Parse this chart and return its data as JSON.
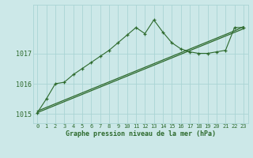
{
  "title": "Graphe pression niveau de la mer (hPa)",
  "background_color": "#cce8e8",
  "grid_color": "#aad4d4",
  "line_color": "#2d6a2d",
  "xlim": [
    -0.5,
    23.5
  ],
  "ylim": [
    1014.7,
    1018.6
  ],
  "yticks": [
    1015,
    1016,
    1017
  ],
  "xticks": [
    0,
    1,
    2,
    3,
    4,
    5,
    6,
    7,
    8,
    9,
    10,
    11,
    12,
    13,
    14,
    15,
    16,
    17,
    18,
    19,
    20,
    21,
    22,
    23
  ],
  "trend1_y": [
    1015.05,
    1015.17,
    1015.29,
    1015.41,
    1015.53,
    1015.65,
    1015.77,
    1015.89,
    1016.01,
    1016.13,
    1016.25,
    1016.37,
    1016.49,
    1016.61,
    1016.73,
    1016.85,
    1016.97,
    1017.09,
    1017.21,
    1017.33,
    1017.45,
    1017.57,
    1017.69,
    1017.81
  ],
  "trend2_y": [
    1015.1,
    1015.22,
    1015.34,
    1015.46,
    1015.58,
    1015.7,
    1015.82,
    1015.94,
    1016.06,
    1016.18,
    1016.3,
    1016.42,
    1016.54,
    1016.66,
    1016.78,
    1016.9,
    1017.02,
    1017.14,
    1017.26,
    1017.38,
    1017.5,
    1017.62,
    1017.74,
    1017.88
  ],
  "main_x": [
    0,
    1,
    2,
    3,
    4,
    5,
    6,
    7,
    8,
    9,
    10,
    11,
    12,
    13,
    14,
    15,
    16,
    17,
    18,
    19,
    20,
    21,
    22,
    23
  ],
  "main_y": [
    1015.05,
    1015.5,
    1016.0,
    1016.05,
    1016.3,
    1016.5,
    1016.7,
    1016.9,
    1017.1,
    1017.35,
    1017.6,
    1017.85,
    1017.65,
    1018.1,
    1017.7,
    1017.35,
    1017.15,
    1017.05,
    1017.0,
    1017.0,
    1017.05,
    1017.1,
    1017.85,
    1017.85
  ]
}
